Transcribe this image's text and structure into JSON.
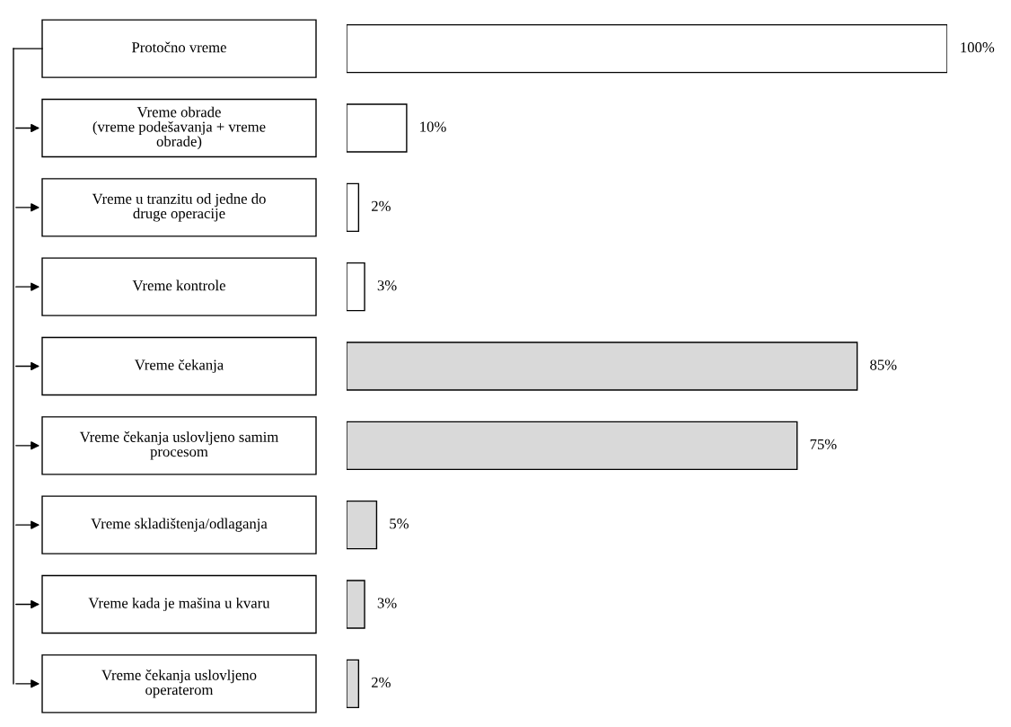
{
  "chart_data": {
    "type": "bar",
    "orientation": "horizontal",
    "categories": [
      "Protočno vreme",
      "Vreme obrade\n(vreme podešavanja + vreme\nobrade)",
      "Vreme u tranzitu od jedne do\ndruge operacije",
      "Vreme kontrole",
      "Vreme čekanja",
      "Vreme čekanja uslovljeno samim\nprocesom",
      "Vreme skladištenja/odlaganja",
      "Vreme kada je mašina u kvaru",
      "Vreme čekanja uslovljeno\noperaterom"
    ],
    "values": [
      100,
      10,
      2,
      3,
      85,
      75,
      5,
      3,
      2
    ],
    "value_labels": [
      "100%",
      "10%",
      "2%",
      "3%",
      "85%",
      "75%",
      "5%",
      "3%",
      "2%"
    ],
    "colors": [
      "#ffffff",
      "#ffffff",
      "#ffffff",
      "#ffffff",
      "#d9d9d9",
      "#d9d9d9",
      "#d9d9d9",
      "#d9d9d9",
      "#d9d9d9"
    ],
    "xlim": [
      0,
      100
    ]
  }
}
